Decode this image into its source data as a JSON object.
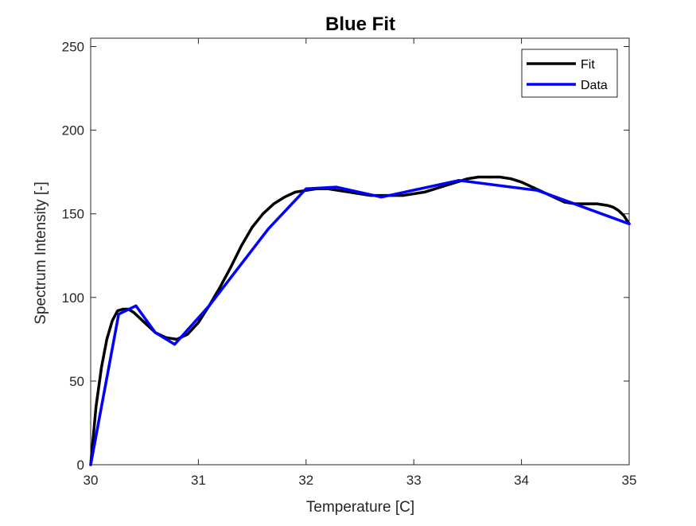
{
  "chart_data": {
    "type": "line",
    "title": "Blue Fit",
    "xlabel": "Temperature [C]",
    "ylabel": "Spectrum Intensity [-]",
    "xlim": [
      30,
      35
    ],
    "ylim": [
      0,
      255
    ],
    "xticks": [
      30,
      31,
      32,
      33,
      34,
      35
    ],
    "yticks": [
      0,
      50,
      100,
      150,
      200,
      250
    ],
    "grid": false,
    "legend_position": "top-right",
    "series": [
      {
        "name": "Fit",
        "color": "#000000",
        "x": [
          30.0,
          30.05,
          30.1,
          30.15,
          30.2,
          30.25,
          30.3,
          30.35,
          30.4,
          30.5,
          30.6,
          30.7,
          30.8,
          30.9,
          31.0,
          31.1,
          31.2,
          31.3,
          31.4,
          31.5,
          31.6,
          31.7,
          31.8,
          31.9,
          32.0,
          32.1,
          32.2,
          32.3,
          32.4,
          32.5,
          32.6,
          32.7,
          32.8,
          32.9,
          33.0,
          33.1,
          33.2,
          33.3,
          33.4,
          33.5,
          33.6,
          33.7,
          33.8,
          33.9,
          34.0,
          34.1,
          34.2,
          34.3,
          34.4,
          34.5,
          34.6,
          34.7,
          34.8,
          34.85,
          34.9,
          34.95,
          35.0
        ],
        "y": [
          0,
          35,
          58,
          75,
          86,
          92,
          93,
          93,
          91,
          85,
          79,
          76,
          75,
          78,
          85,
          95,
          106,
          118,
          131,
          142,
          150,
          156,
          160,
          163,
          164,
          165,
          165,
          164,
          163,
          162,
          161,
          161,
          161,
          161,
          162,
          163,
          165,
          167,
          169,
          171,
          172,
          172,
          172,
          171,
          169,
          166,
          163,
          160,
          157,
          156,
          156,
          156,
          155,
          154,
          152,
          149,
          144
        ]
      },
      {
        "name": "Data",
        "color": "#0000ff",
        "x": [
          30.0,
          30.26,
          30.42,
          30.6,
          30.78,
          31.1,
          31.65,
          32.0,
          32.28,
          32.7,
          33.42,
          34.15,
          35.0
        ],
        "y": [
          0,
          90,
          95,
          79,
          72,
          95,
          141,
          165,
          166,
          160,
          170,
          164,
          144
        ]
      }
    ]
  }
}
